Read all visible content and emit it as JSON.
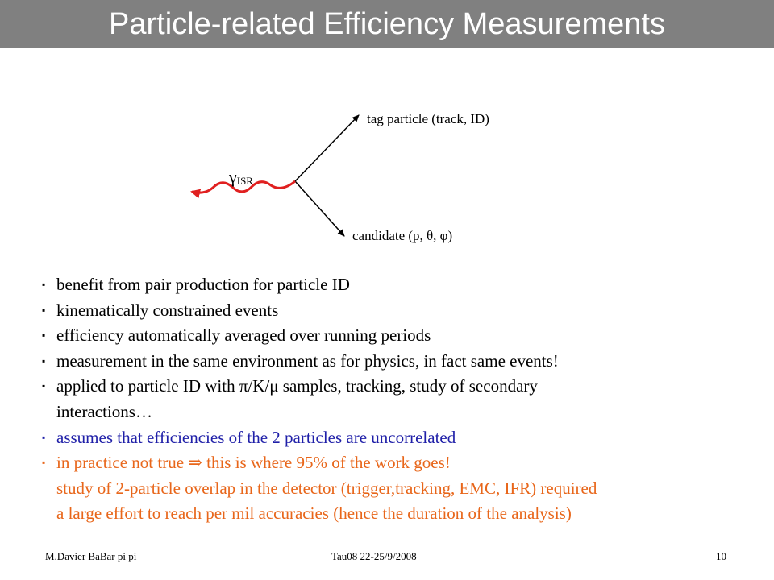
{
  "title": "Particle-related Efficiency Measurements",
  "diagram": {
    "tag_label": "tag particle  (track, ID)",
    "candidate_label": "candidate (p, θ, φ)",
    "gamma_symbol": "γ",
    "gamma_sub": "ISR",
    "photon_color": "#e02020"
  },
  "bullets": [
    {
      "text": "benefit from pair production for particle ID",
      "color": "black"
    },
    {
      "text": "kinematically constrained events",
      "color": "black"
    },
    {
      "text": "efficiency automatically averaged over running periods",
      "color": "black"
    },
    {
      "text": "measurement in the same environment as for physics, in fact same events!",
      "color": "black"
    },
    {
      "text": "applied to particle ID with π/K/μ samples, tracking, study of secondary",
      "cont": "interactions…",
      "color": "black"
    },
    {
      "text": "assumes that efficiencies of the 2 particles are uncorrelated",
      "color": "blue"
    },
    {
      "text": "in practice not true ⇒ this is where 95% of the work goes!",
      "cont": "study of 2-particle overlap in the detector (trigger,tracking, EMC, IFR) required",
      "cont2": "a large effort to reach per mil accuracies (hence the duration of the analysis)",
      "color": "orange"
    }
  ],
  "bullet_glyph": "▪",
  "footer": {
    "author": "M.Davier    BaBar pi pi",
    "event": "Tau08  22-25/9/2008",
    "page": "10"
  }
}
